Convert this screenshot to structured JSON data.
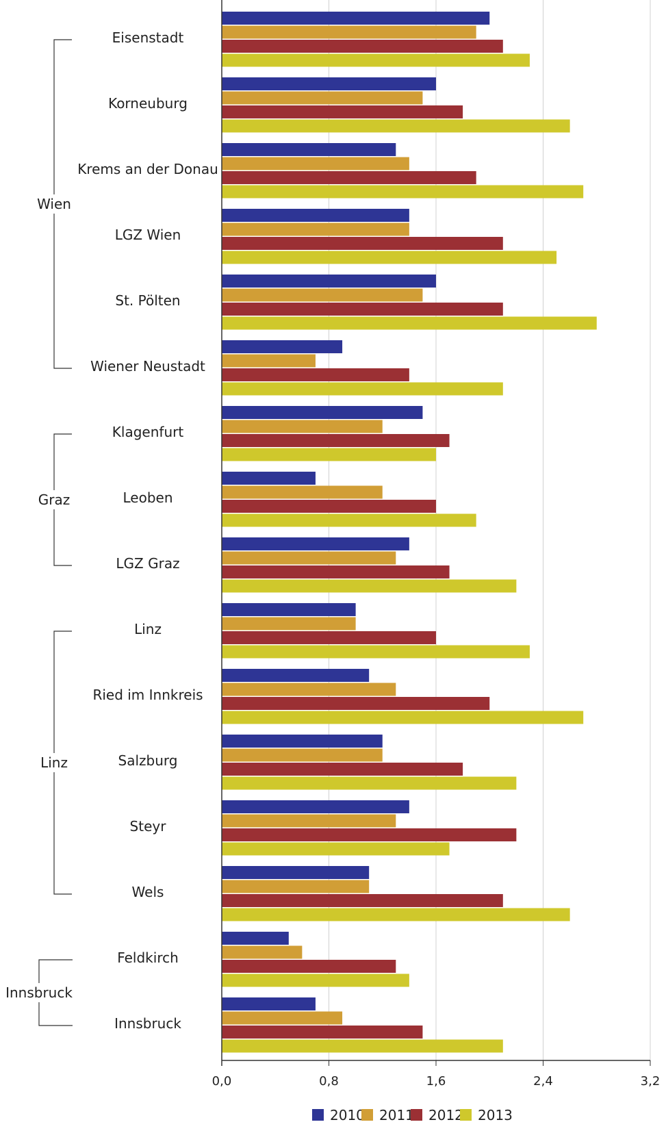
{
  "chart_data": {
    "type": "bar",
    "orientation": "horizontal",
    "categories": [
      "Eisenstadt",
      "Korneuburg",
      "Krems an der Donau",
      "LGZ Wien",
      "St. Pölten",
      "Wiener Neustadt",
      "Klagenfurt",
      "Leoben",
      "LGZ Graz",
      "Linz",
      "Ried im Innkreis",
      "Salzburg",
      "Steyr",
      "Wels",
      "Feldkirch",
      "Innsbruck"
    ],
    "groups": [
      {
        "label": "Wien",
        "first": 0,
        "last": 5
      },
      {
        "label": "Graz",
        "first": 6,
        "last": 8
      },
      {
        "label": "Linz",
        "first": 9,
        "last": 13
      },
      {
        "label": "Innsbruck",
        "first": 14,
        "last": 15
      }
    ],
    "series": [
      {
        "name": "2010",
        "color": "#2e3595",
        "values": [
          2.0,
          1.6,
          1.3,
          1.4,
          1.6,
          0.9,
          1.5,
          0.7,
          1.4,
          1.0,
          1.1,
          1.2,
          1.4,
          1.1,
          0.5,
          0.7
        ]
      },
      {
        "name": "2011",
        "color": "#d19e36",
        "values": [
          1.9,
          1.5,
          1.4,
          1.4,
          1.5,
          0.7,
          1.2,
          1.2,
          1.3,
          1.0,
          1.3,
          1.2,
          1.3,
          1.1,
          0.6,
          0.9
        ]
      },
      {
        "name": "2012",
        "color": "#9b3034",
        "values": [
          2.1,
          1.8,
          1.9,
          2.1,
          2.1,
          1.4,
          1.7,
          1.6,
          1.7,
          1.6,
          2.0,
          1.8,
          2.2,
          2.1,
          1.3,
          1.5
        ]
      },
      {
        "name": "2013",
        "color": "#cfc82c",
        "values": [
          2.3,
          2.6,
          2.7,
          2.5,
          2.8,
          2.1,
          1.6,
          1.9,
          2.2,
          2.3,
          2.7,
          2.2,
          1.7,
          2.6,
          1.4,
          2.1
        ]
      }
    ],
    "xlim": [
      0,
      3.2
    ],
    "xticks": [
      0,
      0.8,
      1.6,
      2.4,
      3.2
    ],
    "xtick_labels": [
      "0,0",
      "0,8",
      "1,6",
      "2,4",
      "3,2"
    ],
    "grid": "vertical",
    "legend_position": "bottom-right",
    "gridline_color": "#d0d0d0",
    "axis_color": "#333333",
    "bracket_color": "#333333"
  }
}
